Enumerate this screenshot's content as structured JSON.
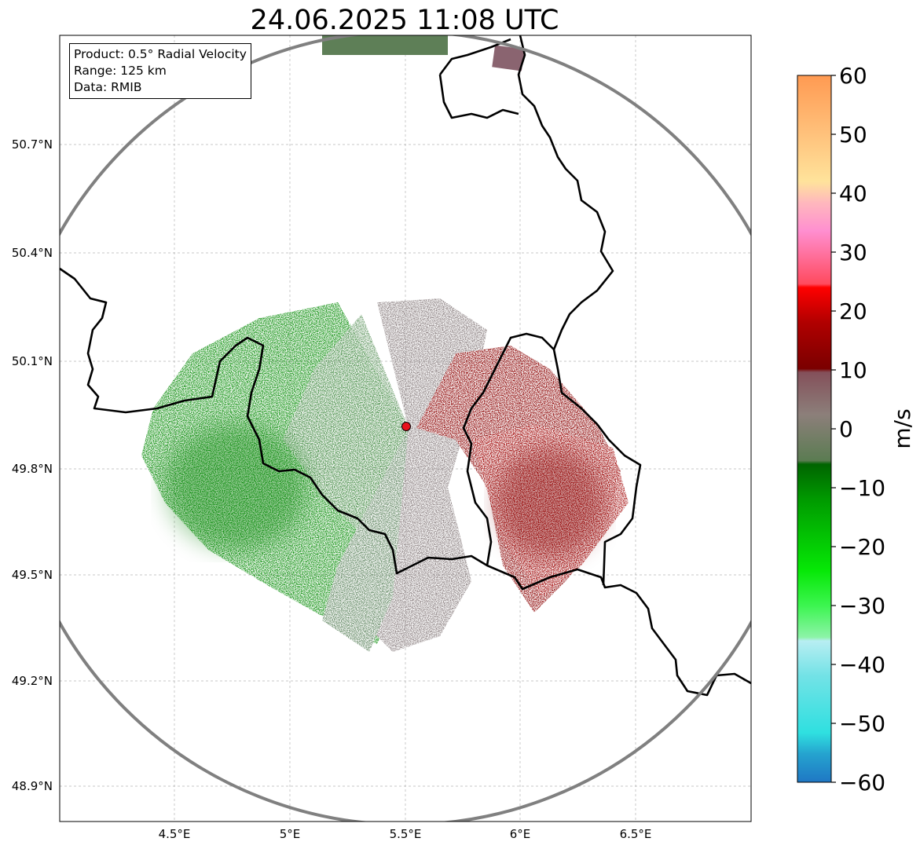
{
  "title": "24.06.2025 11:08 UTC",
  "legend": {
    "product": "Product: 0.5° Radial Velocity",
    "range": "Range: 125 km",
    "data": "Data: RMIB"
  },
  "axes": {
    "lat_labels": [
      "50.7°N",
      "50.4°N",
      "50.1°N",
      "49.8°N",
      "49.5°N",
      "49.2°N",
      "48.9°N"
    ],
    "lat_values": [
      50.7,
      50.4,
      50.1,
      49.8,
      49.5,
      49.2,
      48.9
    ],
    "lon_labels": [
      "4.5°E",
      "5°E",
      "5.5°E",
      "6°E",
      "6.5°E"
    ],
    "lon_values": [
      4.5,
      5.0,
      5.5,
      6.0,
      6.5
    ],
    "lon_range": [
      4.0,
      7.0
    ],
    "lat_range": [
      48.8,
      50.98
    ]
  },
  "radar": {
    "name": "radar-site",
    "lon": 5.505,
    "lat": 49.915,
    "range_km": 125
  },
  "colorbar": {
    "label": "m/s",
    "ticks": [
      "60",
      "50",
      "40",
      "30",
      "20",
      "10",
      "0",
      "−10",
      "−20",
      "−30",
      "−40",
      "−50",
      "−60"
    ],
    "range": [
      -60,
      60
    ]
  },
  "colors": {
    "ring": "#808080",
    "border": "#000000",
    "grid": "#b0b0b0",
    "radar_marker": "#e8121c",
    "approaching_strong": "#008c00",
    "approaching_weak": "#5c8a5c",
    "zero": "#8a7d7d",
    "receding_weak": "#8a6470",
    "receding_strong": "#8b0000"
  }
}
